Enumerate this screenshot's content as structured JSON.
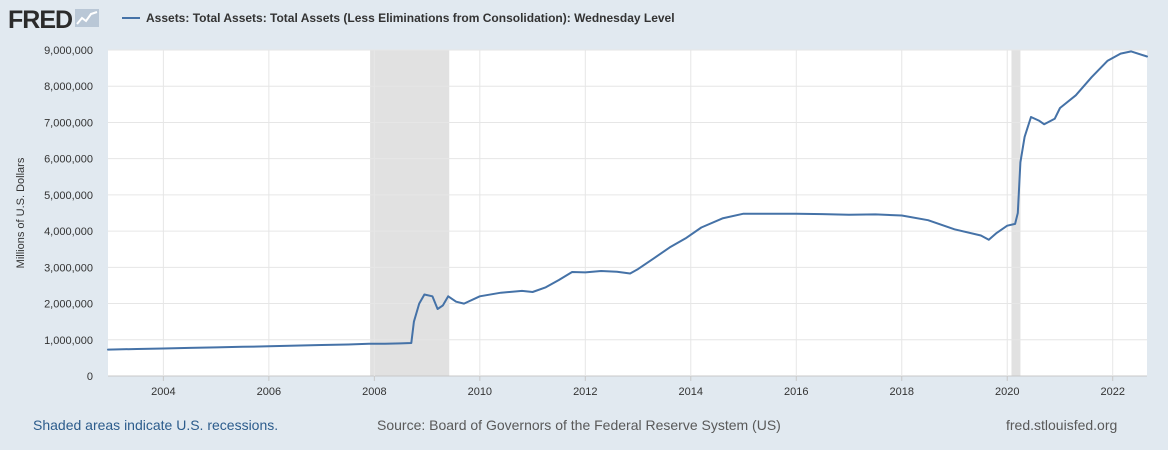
{
  "header": {
    "logo_text": "FRED",
    "logo_icon": "chart-line-icon"
  },
  "legend": {
    "label": "Assets: Total Assets: Total Assets (Less Eliminations from Consolidation): Wednesday Level",
    "color": "#4572a7"
  },
  "footer": {
    "recessions_note": "Shaded areas indicate U.S. recessions.",
    "source": "Source: Board of Governors of the Federal Reserve System (US)",
    "site": "fred.stlouisfed.org"
  },
  "chart_data": {
    "type": "line",
    "title": "",
    "xlabel": "",
    "ylabel": "Millions of U.S. Dollars",
    "xlim": [
      2002.95,
      2022.65
    ],
    "ylim": [
      0,
      9000000
    ],
    "x_ticks": [
      "2004",
      "2006",
      "2008",
      "2010",
      "2012",
      "2014",
      "2016",
      "2018",
      "2020",
      "2022"
    ],
    "y_ticks": [
      "0",
      "1,000,000",
      "2,000,000",
      "3,000,000",
      "4,000,000",
      "5,000,000",
      "6,000,000",
      "7,000,000",
      "8,000,000",
      "9,000,000"
    ],
    "grid": true,
    "legend_position": "top",
    "recessions": [
      {
        "start": 2007.92,
        "end": 2009.42
      },
      {
        "start": 2020.08,
        "end": 2020.25
      }
    ],
    "series": [
      {
        "name": "Assets: Total Assets: Total Assets (Less Eliminations from Consolidation): Wednesday Level",
        "color": "#4572a7",
        "points": [
          [
            2002.95,
            730000
          ],
          [
            2003.5,
            745000
          ],
          [
            2004.0,
            760000
          ],
          [
            2004.5,
            775000
          ],
          [
            2005.0,
            790000
          ],
          [
            2005.5,
            805000
          ],
          [
            2006.0,
            820000
          ],
          [
            2006.5,
            840000
          ],
          [
            2007.0,
            855000
          ],
          [
            2007.5,
            870000
          ],
          [
            2007.9,
            890000
          ],
          [
            2008.2,
            890000
          ],
          [
            2008.5,
            900000
          ],
          [
            2008.7,
            910000
          ],
          [
            2008.75,
            1500000
          ],
          [
            2008.85,
            2000000
          ],
          [
            2008.95,
            2250000
          ],
          [
            2009.1,
            2200000
          ],
          [
            2009.2,
            1850000
          ],
          [
            2009.3,
            1950000
          ],
          [
            2009.4,
            2200000
          ],
          [
            2009.55,
            2050000
          ],
          [
            2009.7,
            2000000
          ],
          [
            2010.0,
            2200000
          ],
          [
            2010.4,
            2300000
          ],
          [
            2010.8,
            2350000
          ],
          [
            2011.0,
            2320000
          ],
          [
            2011.25,
            2450000
          ],
          [
            2011.5,
            2650000
          ],
          [
            2011.75,
            2870000
          ],
          [
            2012.0,
            2860000
          ],
          [
            2012.3,
            2900000
          ],
          [
            2012.6,
            2880000
          ],
          [
            2012.85,
            2830000
          ],
          [
            2013.0,
            2950000
          ],
          [
            2013.3,
            3250000
          ],
          [
            2013.6,
            3550000
          ],
          [
            2013.9,
            3800000
          ],
          [
            2014.2,
            4100000
          ],
          [
            2014.6,
            4350000
          ],
          [
            2015.0,
            4480000
          ],
          [
            2015.5,
            4480000
          ],
          [
            2016.0,
            4480000
          ],
          [
            2016.5,
            4470000
          ],
          [
            2017.0,
            4450000
          ],
          [
            2017.5,
            4460000
          ],
          [
            2018.0,
            4430000
          ],
          [
            2018.5,
            4300000
          ],
          [
            2019.0,
            4050000
          ],
          [
            2019.5,
            3880000
          ],
          [
            2019.65,
            3760000
          ],
          [
            2019.8,
            3950000
          ],
          [
            2020.0,
            4150000
          ],
          [
            2020.15,
            4200000
          ],
          [
            2020.2,
            4500000
          ],
          [
            2020.25,
            5900000
          ],
          [
            2020.33,
            6600000
          ],
          [
            2020.45,
            7150000
          ],
          [
            2020.6,
            7050000
          ],
          [
            2020.7,
            6950000
          ],
          [
            2020.9,
            7100000
          ],
          [
            2021.0,
            7400000
          ],
          [
            2021.3,
            7750000
          ],
          [
            2021.6,
            8250000
          ],
          [
            2021.9,
            8700000
          ],
          [
            2022.15,
            8900000
          ],
          [
            2022.35,
            8960000
          ],
          [
            2022.65,
            8820000
          ]
        ]
      }
    ]
  }
}
